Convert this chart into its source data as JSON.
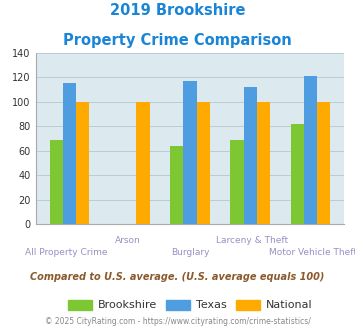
{
  "title_line1": "2019 Brookshire",
  "title_line2": "Property Crime Comparison",
  "categories": [
    "All Property Crime",
    "Arson",
    "Burglary",
    "Larceny & Theft",
    "Motor Vehicle Theft"
  ],
  "brookshire": [
    69,
    0,
    64,
    69,
    82
  ],
  "texas": [
    115,
    0,
    117,
    112,
    121
  ],
  "national": [
    100,
    100,
    100,
    100,
    100
  ],
  "color_brookshire": "#7dc832",
  "color_texas": "#4d9de0",
  "color_national": "#ffaa00",
  "ylim": [
    0,
    140
  ],
  "yticks": [
    0,
    20,
    40,
    60,
    80,
    100,
    120,
    140
  ],
  "background_color": "#dce9ef",
  "subtitle": "Compared to U.S. average. (U.S. average equals 100)",
  "footer": "© 2025 CityRating.com - https://www.cityrating.com/crime-statistics/",
  "title_color": "#1a85d6",
  "subtitle_color": "#8b5a2b",
  "footer_color": "#888888",
  "xlabel_color_top": "#9b8ec4",
  "xlabel_color_bot": "#9b8ec4",
  "bar_width": 0.22
}
